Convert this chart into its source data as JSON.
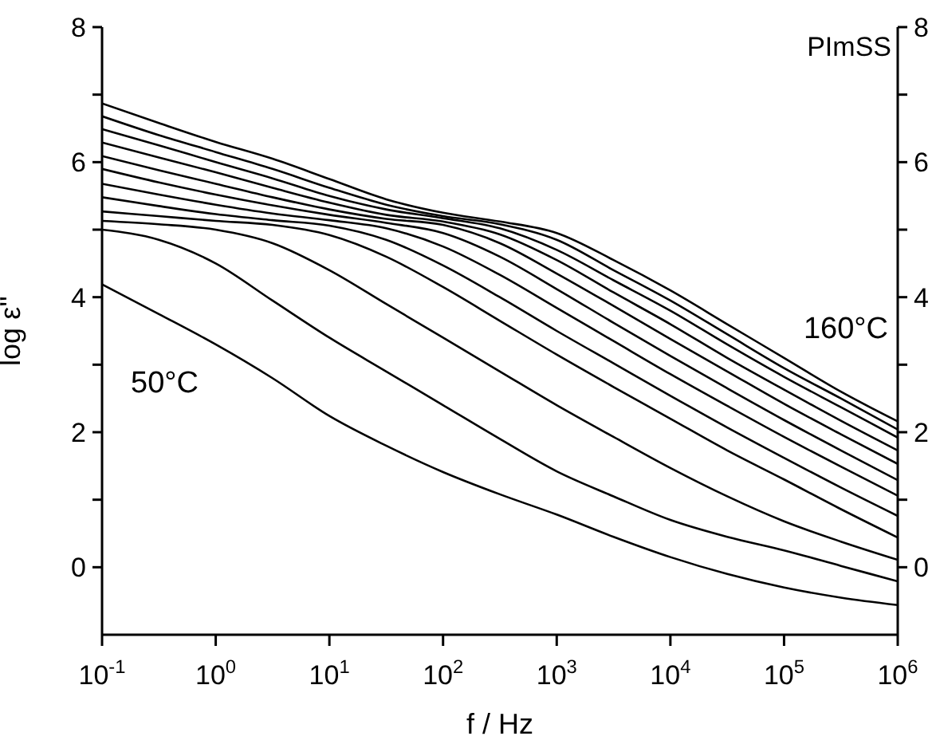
{
  "chart_data": {
    "type": "line",
    "xlabel": "f / Hz",
    "ylabel": "log ε''",
    "log": "x",
    "x": [
      0.1,
      0.316,
      1,
      3.16,
      10,
      31.6,
      100,
      316,
      1000,
      3162,
      10000,
      31623,
      100000,
      316228,
      1000000
    ],
    "xlim": [
      0.1,
      1000000
    ],
    "xticks": [
      {
        "value": 0.1,
        "label": "10$^{-1}$"
      },
      {
        "value": 1,
        "label": "10$^{0}$"
      },
      {
        "value": 10,
        "label": "10$^{1}$"
      },
      {
        "value": 100,
        "label": "10$^{2}$"
      },
      {
        "value": 1000,
        "label": "10$^{3}$"
      },
      {
        "value": 10000,
        "label": "10$^{4}$"
      },
      {
        "value": 100000,
        "label": "10$^{5}$"
      },
      {
        "value": 1000000,
        "label": "10$^{6}$"
      }
    ],
    "ylim": [
      -1,
      8
    ],
    "yticks": [
      0,
      {
        "value": 1,
        "label": null
      },
      2,
      {
        "value": 3,
        "label": null
      },
      4,
      {
        "value": 5,
        "label": null
      },
      6,
      {
        "value": 7,
        "label": null
      },
      8
    ],
    "y2lim": [
      -1,
      8
    ],
    "y2ticks": [
      0,
      {
        "value": 1,
        "label": null
      },
      2,
      {
        "value": 3,
        "label": null
      },
      4,
      {
        "value": 5,
        "label": null
      },
      6,
      {
        "value": 7,
        "label": null
      },
      8
    ],
    "series": [
      {
        "color": "#000000",
        "values": [
          6.87,
          6.58,
          6.3,
          6.05,
          5.75,
          5.45,
          5.25,
          5.12,
          4.95,
          4.55,
          4.1,
          3.6,
          3.1,
          2.6,
          2.16
        ]
      },
      {
        "color": "#000000",
        "values": [
          6.68,
          6.4,
          6.15,
          5.9,
          5.62,
          5.37,
          5.2,
          5.08,
          4.85,
          4.4,
          3.95,
          3.45,
          2.95,
          2.5,
          2.04
        ]
      },
      {
        "color": "#000000",
        "values": [
          6.49,
          6.25,
          6.0,
          5.76,
          5.5,
          5.3,
          5.17,
          5.02,
          4.7,
          4.25,
          3.8,
          3.3,
          2.82,
          2.37,
          1.92
        ]
      },
      {
        "color": "#000000",
        "values": [
          6.29,
          6.07,
          5.85,
          5.62,
          5.4,
          5.22,
          5.12,
          4.93,
          4.55,
          4.07,
          3.6,
          3.1,
          2.63,
          2.17,
          1.73
        ]
      },
      {
        "color": "#000000",
        "values": [
          6.09,
          5.88,
          5.68,
          5.48,
          5.3,
          5.16,
          5.07,
          4.8,
          4.35,
          3.87,
          3.38,
          2.9,
          2.42,
          1.97,
          1.53
        ]
      },
      {
        "color": "#000000",
        "values": [
          5.9,
          5.7,
          5.52,
          5.36,
          5.22,
          5.1,
          4.95,
          4.6,
          4.12,
          3.62,
          3.13,
          2.65,
          2.18,
          1.73,
          1.29
        ]
      },
      {
        "color": "#000000",
        "values": [
          5.68,
          5.52,
          5.37,
          5.24,
          5.14,
          5.02,
          4.75,
          4.33,
          3.84,
          3.35,
          2.86,
          2.39,
          1.93,
          1.49,
          1.06
        ]
      },
      {
        "color": "#000000",
        "values": [
          5.48,
          5.35,
          5.23,
          5.14,
          5.06,
          4.85,
          4.47,
          4.0,
          3.5,
          3.02,
          2.54,
          2.07,
          1.62,
          1.18,
          0.76
        ]
      },
      {
        "color": "#000000",
        "values": [
          5.27,
          5.2,
          5.13,
          5.07,
          4.92,
          4.6,
          4.15,
          3.65,
          3.15,
          2.67,
          2.2,
          1.73,
          1.3,
          0.86,
          0.44
        ]
      },
      {
        "color": "#000000",
        "values": [
          5.13,
          5.08,
          5.0,
          4.8,
          4.4,
          3.9,
          3.4,
          2.9,
          2.4,
          1.93,
          1.47,
          1.05,
          0.68,
          0.38,
          0.11
        ]
      },
      {
        "color": "#000000",
        "values": [
          5.0,
          4.85,
          4.5,
          3.95,
          3.4,
          2.9,
          2.4,
          1.9,
          1.42,
          1.05,
          0.7,
          0.45,
          0.25,
          0.02,
          -0.21
        ]
      },
      {
        "color": "#000000",
        "values": [
          4.19,
          3.75,
          3.3,
          2.8,
          2.24,
          1.8,
          1.41,
          1.08,
          0.78,
          0.45,
          0.15,
          -0.1,
          -0.3,
          -0.45,
          -0.56
        ]
      }
    ],
    "annotations": [
      "PImSS",
      "160°C",
      "50°C"
    ]
  }
}
